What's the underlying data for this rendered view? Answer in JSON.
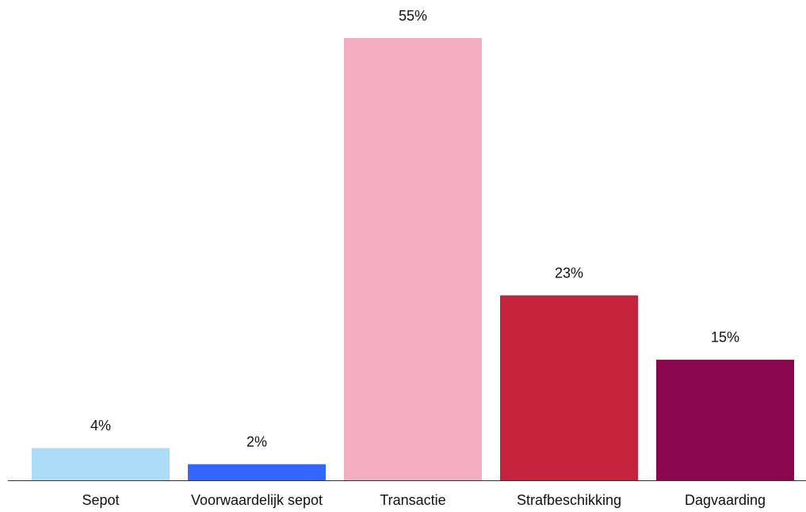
{
  "chart_data": {
    "type": "bar",
    "categories": [
      "Sepot",
      "Voorwaardelijk sepot",
      "Transactie",
      "Strafbeschikking",
      "Dagvaarding"
    ],
    "values": [
      4,
      2,
      55,
      23,
      15
    ],
    "value_labels": [
      "4%",
      "2%",
      "55%",
      "23%",
      "15%"
    ],
    "colors": [
      "#addcf7",
      "#3366ff",
      "#f4aec1",
      "#c4233b",
      "#8a074d"
    ]
  }
}
